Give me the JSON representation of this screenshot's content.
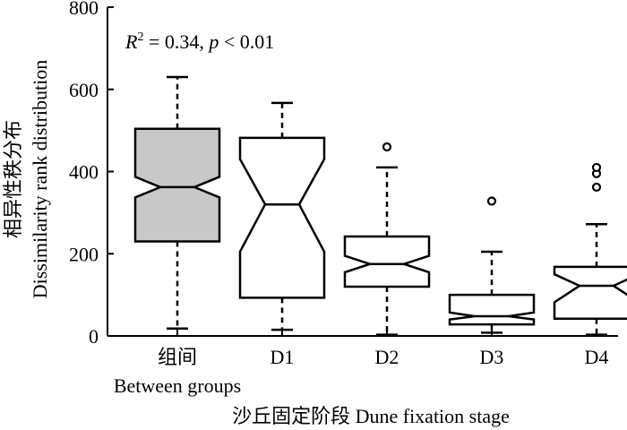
{
  "chart_data": {
    "type": "boxplot",
    "annotation": {
      "r_letter": "R",
      "r_sup": "2",
      "r_rest": " = 0.34, ",
      "p_letter": "p",
      "p_rest": " < 0.01"
    },
    "ylabel_cn": "相异性秩分布",
    "ylabel_en": "Dissimilarity rank distribution",
    "xlabel": "沙丘固定阶段 Dune fixation stage",
    "ylim": [
      0,
      800
    ],
    "yticks": [
      0,
      200,
      400,
      600,
      800
    ],
    "notched": true,
    "categories": [
      {
        "label": "组间",
        "sublabel": "Between groups",
        "color": "#c8c8c8",
        "min": 18,
        "q1": 230,
        "notch_low": 337,
        "median": 362,
        "notch_high": 387,
        "q3": 504,
        "max": 630,
        "outliers": []
      },
      {
        "label": "D1",
        "sublabel": "",
        "color": "#ffffff",
        "min": 15,
        "q1": 93,
        "notch_low": 205,
        "median": 320,
        "notch_high": 430,
        "q3": 482,
        "max": 567,
        "outliers": []
      },
      {
        "label": "D2",
        "sublabel": "",
        "color": "#ffffff",
        "min": 3,
        "q1": 120,
        "notch_low": 155,
        "median": 175,
        "notch_high": 195,
        "q3": 242,
        "max": 410,
        "outliers": [
          460
        ]
      },
      {
        "label": "D3",
        "sublabel": "",
        "color": "#ffffff",
        "min": 8,
        "q1": 28,
        "notch_low": 40,
        "median": 48,
        "notch_high": 57,
        "q3": 100,
        "max": 205,
        "outliers": [
          328
        ]
      },
      {
        "label": "D4",
        "sublabel": "",
        "color": "#ffffff",
        "min": 3,
        "q1": 42,
        "notch_low": 82,
        "median": 122,
        "notch_high": 150,
        "q3": 168,
        "max": 272,
        "outliers": [
          362,
          395,
          410
        ]
      }
    ]
  }
}
